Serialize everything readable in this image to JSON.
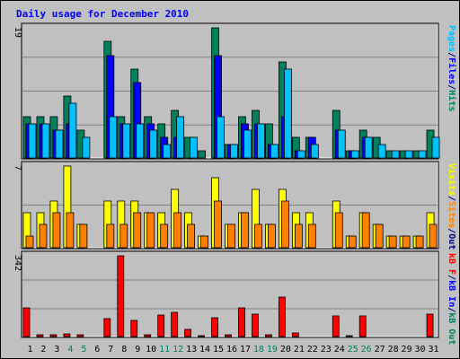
{
  "chart_data": {
    "type": "bar",
    "title": "Daily usage for December 2010",
    "days": [
      "1",
      "2",
      "3",
      "4",
      "5",
      "6",
      "7",
      "8",
      "9",
      "10",
      "11",
      "12",
      "13",
      "14",
      "15",
      "16",
      "17",
      "18",
      "19",
      "20",
      "21",
      "22",
      "23",
      "24",
      "25",
      "26",
      "27",
      "28",
      "29",
      "30",
      "31"
    ],
    "weekend_days": [
      "4",
      "5",
      "11",
      "12",
      "18",
      "19",
      "25",
      "26"
    ],
    "panels": [
      {
        "axis_label": "19",
        "right_labels": [
          {
            "text": "Pages",
            "color": "#00c0ff"
          },
          {
            "text": "/",
            "color": "#000080"
          },
          {
            "text": "Files",
            "color": "#0000ff"
          },
          {
            "text": "/",
            "color": "#000080"
          },
          {
            "text": "Hits",
            "color": "#008060"
          }
        ],
        "ymax": 19,
        "series": [
          {
            "key": "hits",
            "color": "#00805c",
            "values": [
              6,
              6,
              6,
              9,
              4,
              0,
              17,
              6,
              13,
              6,
              5,
              7,
              3,
              1,
              19,
              2,
              6,
              7,
              5,
              14,
              3,
              3,
              0,
              7,
              1,
              4,
              3,
              1,
              1,
              1,
              4
            ]
          },
          {
            "key": "files",
            "color": "#0000ff",
            "values": [
              5,
              5,
              4,
              5,
              0,
              0,
              15,
              5,
              11,
              5,
              3,
              3,
              0,
              0,
              15,
              2,
              5,
              5,
              2,
              6,
              1,
              3,
              0,
              4,
              1,
              3,
              0,
              0,
              0,
              0,
              0
            ]
          },
          {
            "key": "pages",
            "color": "#00c0ff",
            "values": [
              5,
              5,
              4,
              8,
              3,
              0,
              6,
              5,
              5,
              4,
              2,
              6,
              3,
              0,
              6,
              2,
              4,
              5,
              2,
              13,
              1,
              2,
              0,
              4,
              1,
              3,
              2,
              1,
              1,
              1,
              3
            ]
          }
        ]
      },
      {
        "axis_label": "7",
        "right_labels": [
          {
            "text": "Visits",
            "color": "#ffff00"
          },
          {
            "text": "/",
            "color": "#000080"
          },
          {
            "text": "Sites",
            "color": "#ff8000"
          },
          {
            "text": "/",
            "color": "#000080"
          },
          {
            "text": "Out",
            "color": "#000080"
          }
        ],
        "ymax": 7,
        "series": [
          {
            "key": "visits",
            "color": "#ffff00",
            "values": [
              3,
              3,
              4,
              7,
              2,
              0,
              4,
              4,
              4,
              3,
              3,
              5,
              3,
              1,
              6,
              2,
              3,
              5,
              2,
              5,
              3,
              3,
              0,
              4,
              1,
              3,
              2,
              1,
              1,
              1,
              3
            ]
          },
          {
            "key": "sites",
            "color": "#ff8000",
            "values": [
              1,
              2,
              3,
              3,
              2,
              0,
              2,
              2,
              3,
              3,
              2,
              3,
              2,
              1,
              4,
              2,
              3,
              2,
              2,
              4,
              2,
              2,
              0,
              3,
              1,
              3,
              2,
              1,
              1,
              1,
              2
            ]
          }
        ]
      },
      {
        "axis_label": "342",
        "right_labels": [
          {
            "text": "kB F",
            "color": "#ff0000"
          },
          {
            "text": "/",
            "color": "#000080"
          },
          {
            "text": "kB In",
            "color": "#0000ff"
          },
          {
            "text": "/",
            "color": "#000080"
          },
          {
            "text": "kB Out",
            "color": "#008060"
          }
        ],
        "ymax": 342,
        "series": [
          {
            "key": "kbf",
            "color": "#ff0000",
            "values": [
              122,
              6,
              6,
              10,
              6,
              0,
              76,
              342,
              70,
              8,
              91,
              102,
              30,
              3,
              80,
              6,
              122,
              96,
              8,
              168,
              14,
              0,
              0,
              87,
              1,
              87,
              0,
              0,
              0,
              0,
              95
            ]
          }
        ]
      }
    ]
  }
}
